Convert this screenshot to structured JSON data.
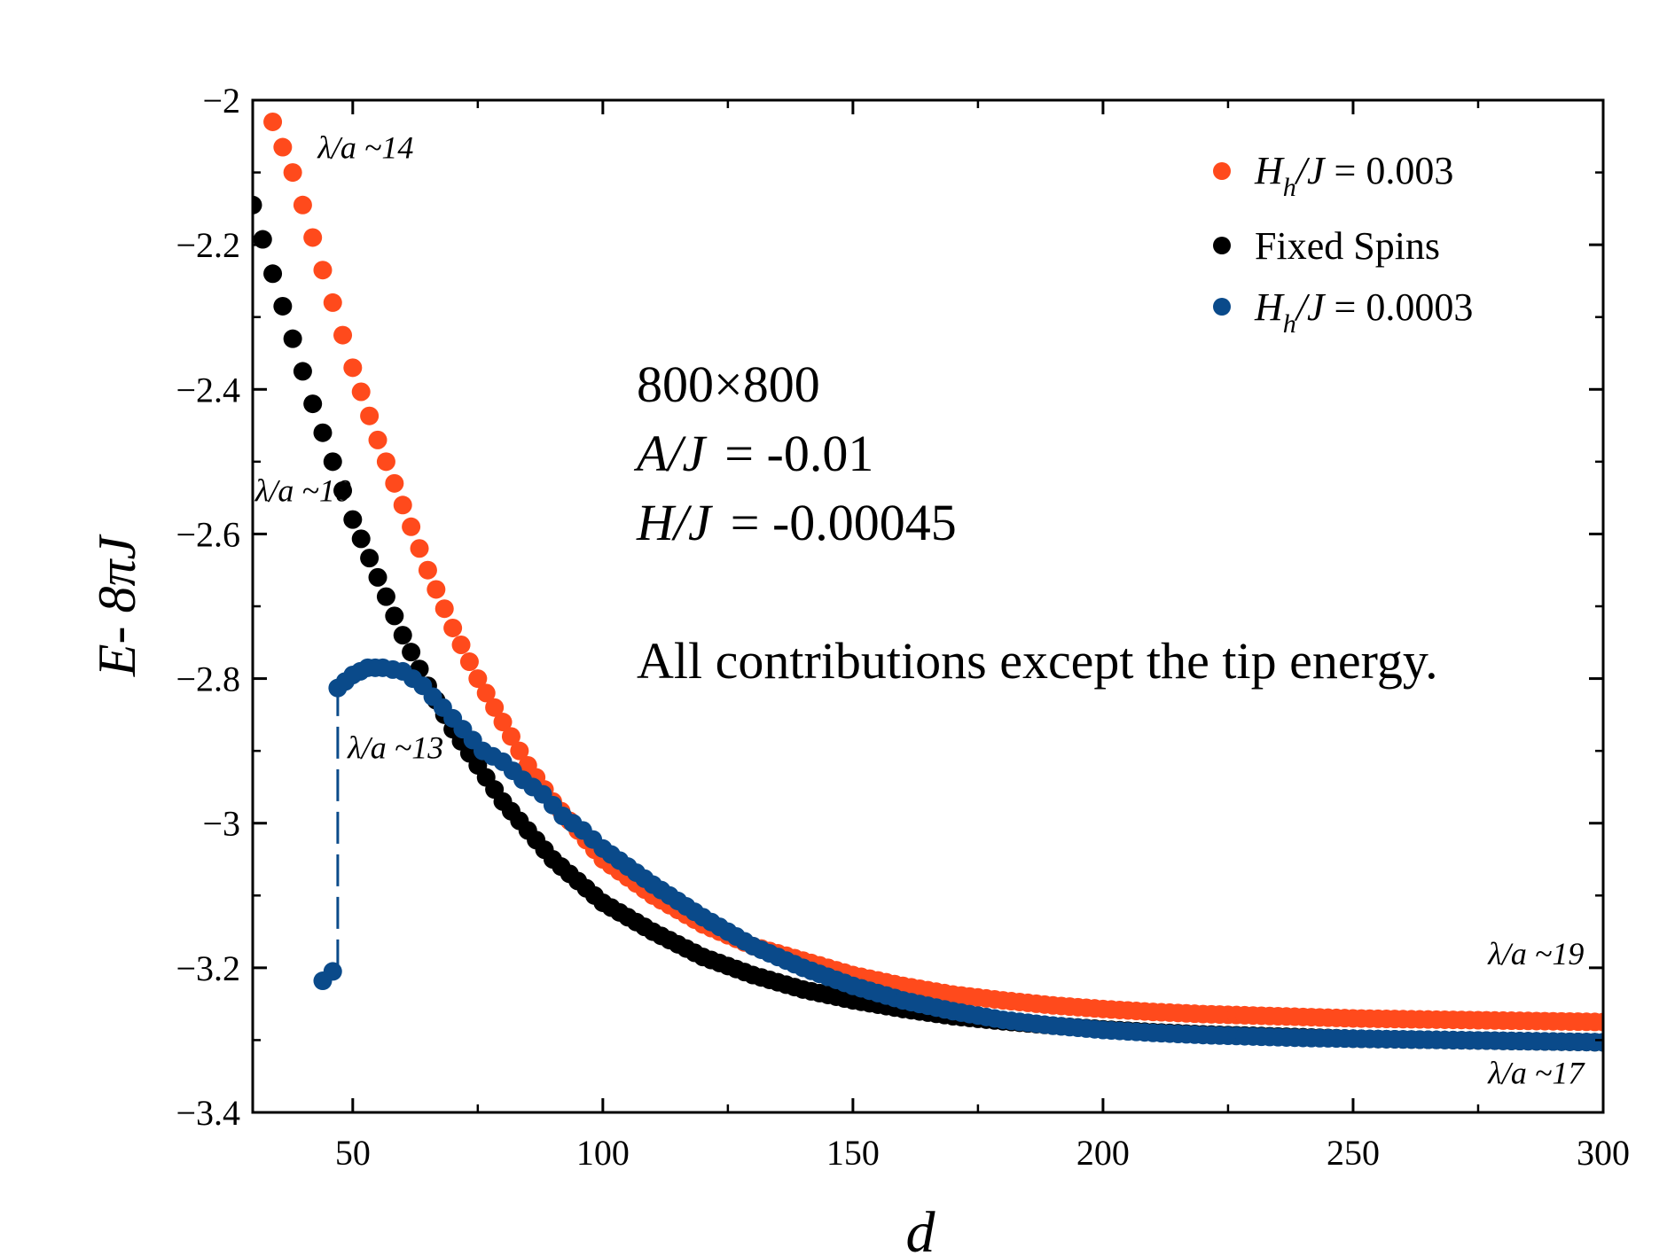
{
  "chart_data": {
    "type": "scatter",
    "xlabel": "d",
    "ylabel": "E- 8πJ",
    "xlim": [
      30,
      300
    ],
    "ylim": [
      -3.4,
      -2.0
    ],
    "xticks": [
      50,
      100,
      150,
      200,
      250,
      300
    ],
    "xtick_labels": [
      "50",
      "100",
      "150",
      "200",
      "250",
      "300"
    ],
    "yticks": [
      -2.0,
      -2.2,
      -2.4,
      -2.6,
      -2.8,
      -3.0,
      -3.2,
      -3.4
    ],
    "ytick_labels": [
      "−2",
      "−2.2",
      "−2.4",
      "−2.6",
      "−2.8",
      "−3",
      "−3.2",
      "−3.4"
    ],
    "grid": false,
    "legend_position": "top-right",
    "series": [
      {
        "name": "H_h/J = 0.003",
        "color": "#FF4A1C",
        "x": [
          34,
          38,
          42,
          46,
          50,
          55,
          60,
          65,
          70,
          75,
          80,
          85,
          90,
          95,
          100,
          110,
          120,
          130,
          140,
          150,
          160,
          170,
          180,
          190,
          200,
          210,
          220,
          230,
          240,
          250,
          260,
          270,
          280,
          290,
          300
        ],
        "y": [
          -2.03,
          -2.1,
          -2.19,
          -2.28,
          -2.37,
          -2.47,
          -2.56,
          -2.65,
          -2.73,
          -2.8,
          -2.86,
          -2.92,
          -2.97,
          -3.01,
          -3.05,
          -3.1,
          -3.14,
          -3.17,
          -3.19,
          -3.21,
          -3.225,
          -3.237,
          -3.245,
          -3.252,
          -3.257,
          -3.261,
          -3.264,
          -3.266,
          -3.268,
          -3.27,
          -3.271,
          -3.272,
          -3.273,
          -3.274,
          -3.275
        ]
      },
      {
        "name": "Fixed Spins",
        "color": "#000000",
        "x": [
          30,
          34,
          38,
          42,
          46,
          50,
          55,
          60,
          65,
          70,
          75,
          80,
          85,
          90,
          95,
          100,
          110,
          120,
          130,
          140,
          150,
          160,
          170,
          180,
          190,
          200,
          210,
          220,
          230,
          240,
          250,
          260,
          270,
          280,
          290,
          300
        ],
        "y": [
          -2.145,
          -2.24,
          -2.33,
          -2.42,
          -2.5,
          -2.58,
          -2.66,
          -2.74,
          -2.81,
          -2.87,
          -2.92,
          -2.97,
          -3.01,
          -3.05,
          -3.08,
          -3.11,
          -3.15,
          -3.185,
          -3.21,
          -3.23,
          -3.245,
          -3.257,
          -3.267,
          -3.274,
          -3.28,
          -3.285,
          -3.289,
          -3.292,
          -3.294,
          -3.296,
          -3.298,
          -3.299,
          -3.3,
          -3.301,
          -3.302,
          -3.303
        ]
      },
      {
        "name": "H_h/J = 0.0003",
        "color": "#0A4A8A",
        "x": [
          44,
          46,
          47,
          50,
          53,
          56,
          60,
          64,
          68,
          72,
          76,
          80,
          84,
          88,
          92,
          96,
          100,
          110,
          120,
          130,
          140,
          150,
          160,
          170,
          180,
          190,
          200,
          210,
          220,
          230,
          240,
          250,
          260,
          270,
          280,
          290,
          300
        ],
        "y": [
          -3.218,
          -3.205,
          -2.813,
          -2.795,
          -2.785,
          -2.785,
          -2.79,
          -2.81,
          -2.84,
          -2.87,
          -2.9,
          -2.915,
          -2.94,
          -2.96,
          -2.99,
          -3.01,
          -3.035,
          -3.085,
          -3.13,
          -3.17,
          -3.2,
          -3.225,
          -3.245,
          -3.26,
          -3.272,
          -3.28,
          -3.286,
          -3.29,
          -3.293,
          -3.295,
          -3.297,
          -3.298,
          -3.299,
          -3.3,
          -3.301,
          -3.302,
          -3.303
        ]
      }
    ],
    "annotations": [
      {
        "text": "λ/a ~14",
        "x": 43,
        "y": -2.08
      },
      {
        "text": "λ/a ~10",
        "x": 30.5,
        "y": -2.555
      },
      {
        "text": "λ/a ~13",
        "x": 49,
        "y": -2.91
      },
      {
        "text": "λ/a ~19",
        "x": 277,
        "y": -3.195
      },
      {
        "text": "λ/a ~17",
        "x": 277,
        "y": -3.36
      }
    ],
    "info_box": {
      "line1": "800×800",
      "line2_var": "A/J",
      "line2_val": "= -0.01",
      "line3_var": "H/J",
      "line3_val": "= -0.00045",
      "line4": "All contributions except the tip energy."
    },
    "legend": [
      {
        "label_var": "H",
        "label_sub": "h",
        "label_rest": "/J",
        "label_val": " = 0.003",
        "color": "#FF4A1C"
      },
      {
        "label_plain": "Fixed Spins",
        "color": "#000000"
      },
      {
        "label_var": "H",
        "label_sub": "h",
        "label_rest": "/J",
        "label_val": " = 0.0003",
        "color": "#0A4A8A"
      }
    ]
  }
}
